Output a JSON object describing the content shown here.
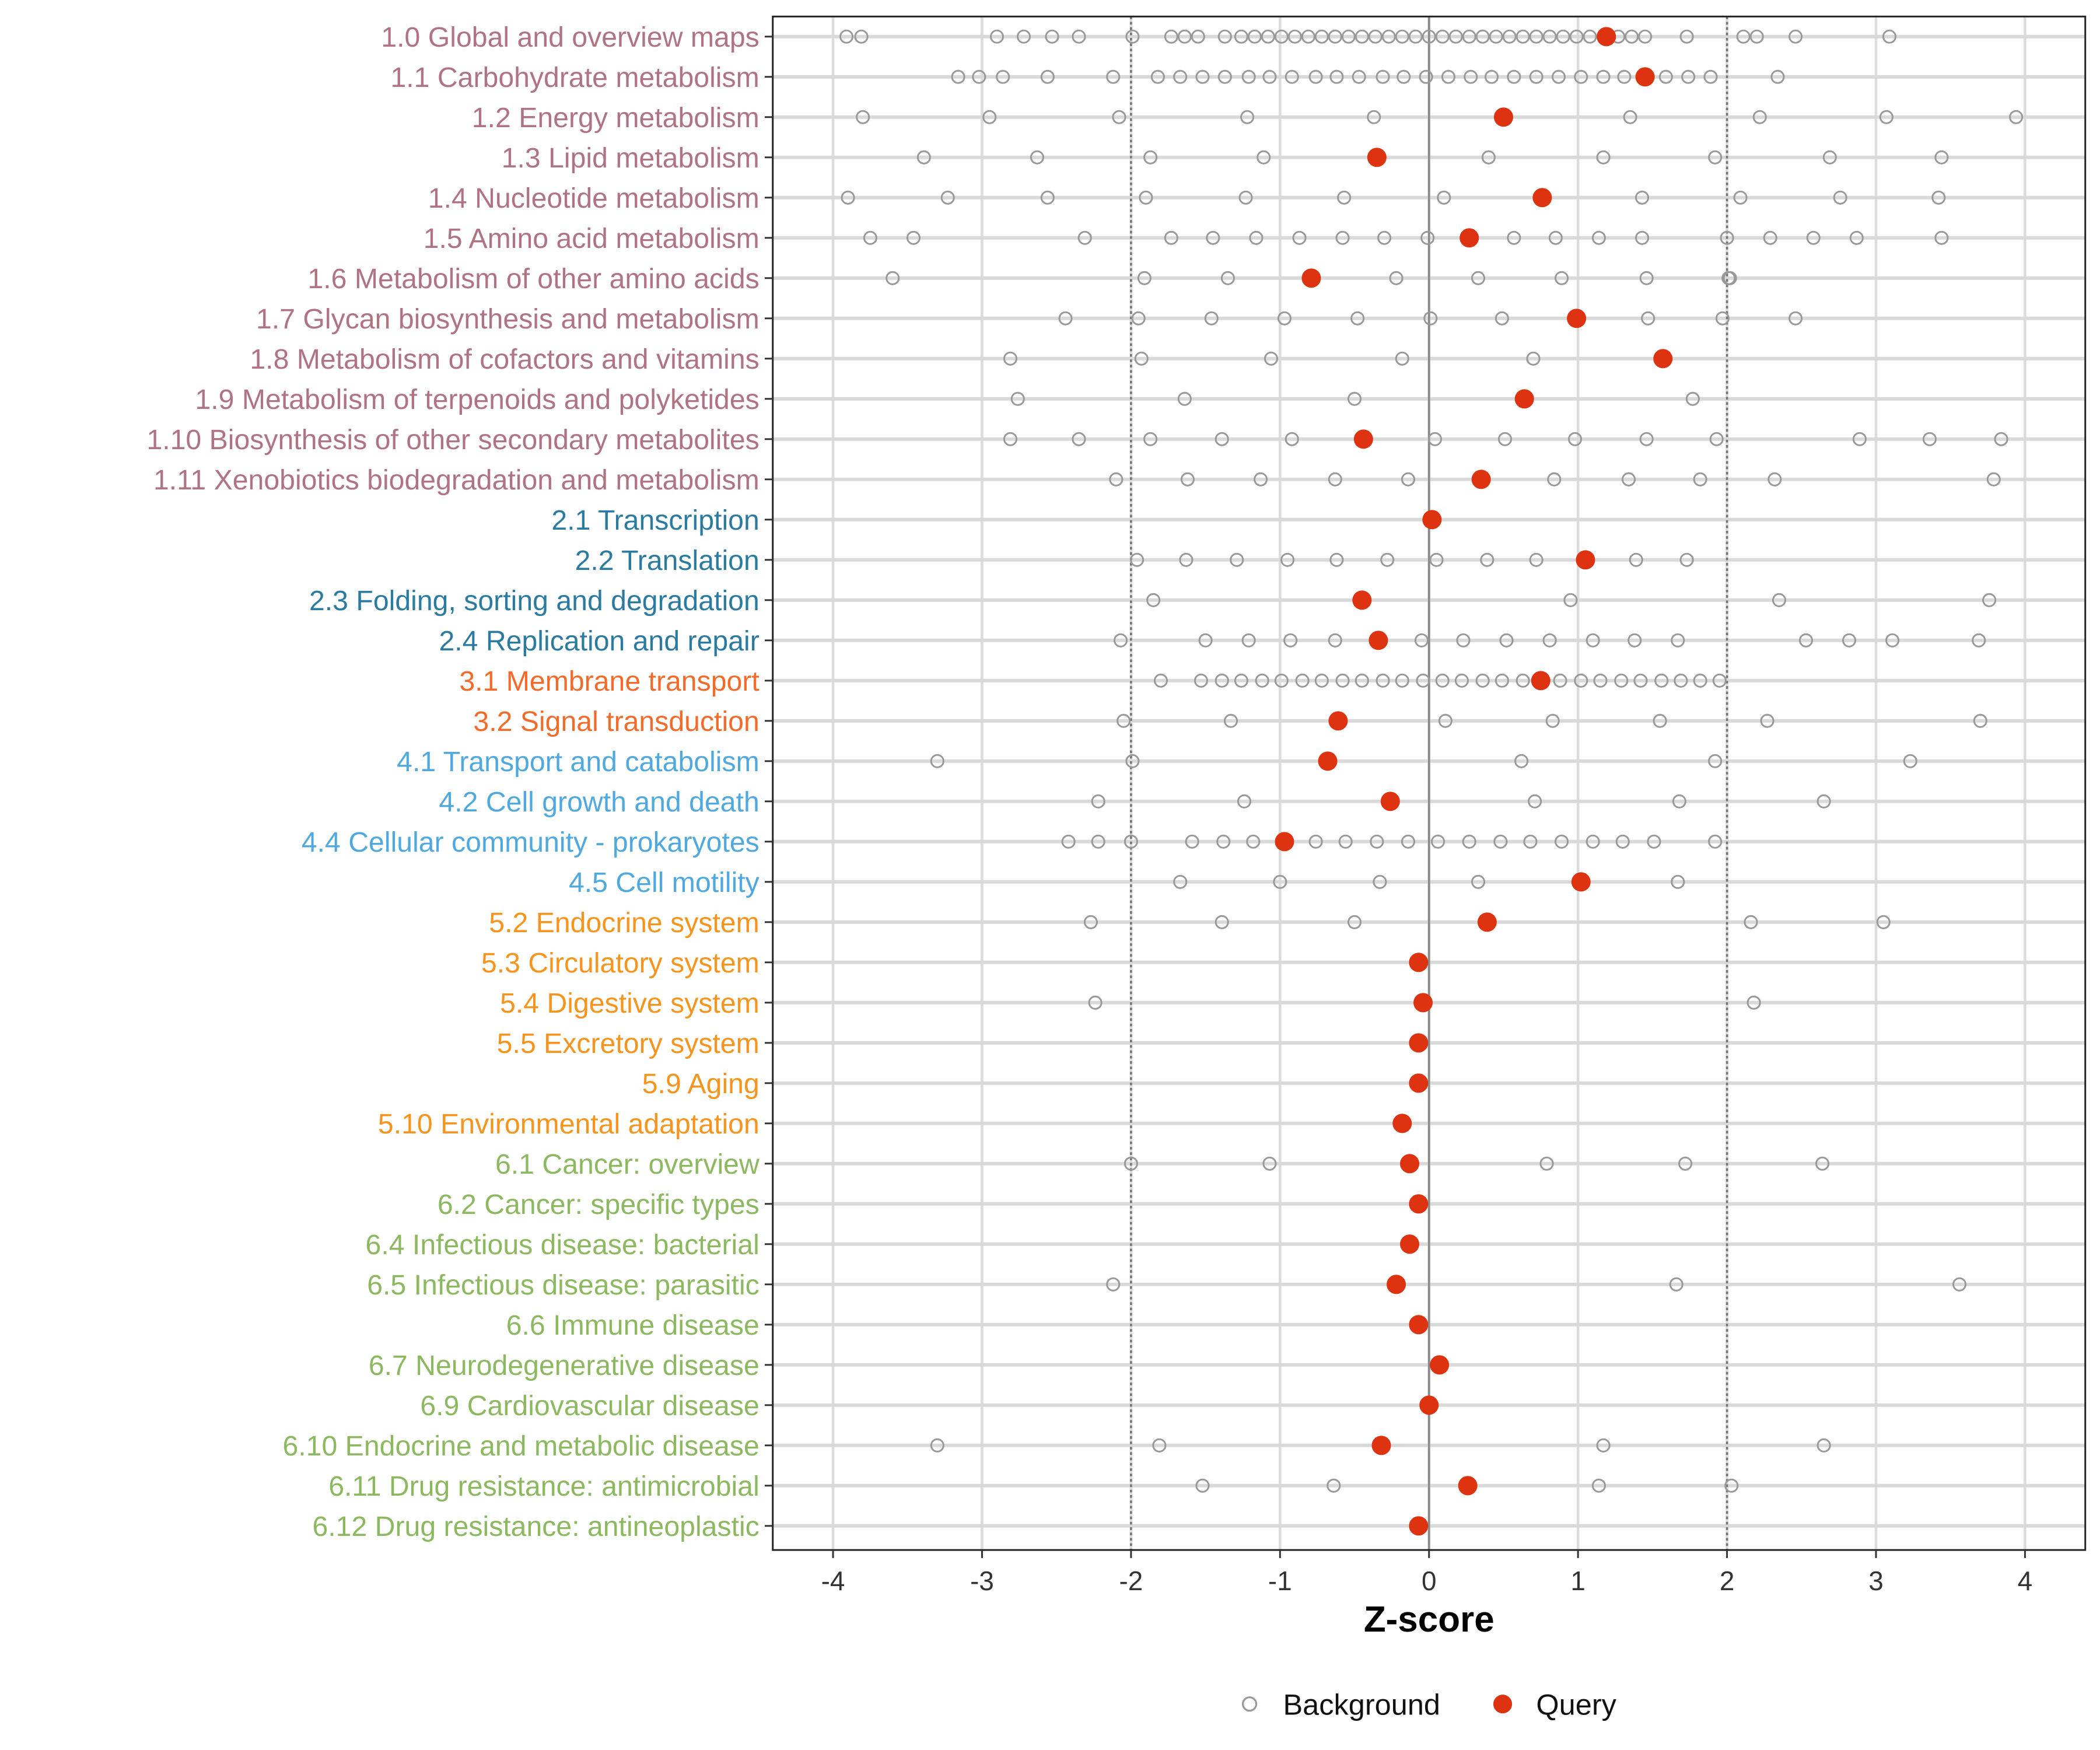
{
  "chart_data": {
    "type": "scatter",
    "title": "",
    "xlabel": "Z-score",
    "ylabel": "",
    "xlim": [
      -4.25,
      4.4
    ],
    "xticks": [
      -4,
      -3,
      -2,
      -1,
      0,
      1,
      2,
      3,
      4
    ],
    "xtick_labels": [
      "-4",
      "-3",
      "-2",
      "-1",
      "0",
      "1",
      "2",
      "3",
      "4"
    ],
    "reference_lines": {
      "dashed": [
        -2,
        2
      ],
      "solid": [
        0
      ]
    },
    "grid": true,
    "legend": {
      "placement": "bottom",
      "entries": [
        "Background",
        "Query"
      ]
    },
    "colors": {
      "query": "#DD3311",
      "background": "#999999",
      "group_1": "#B07383",
      "group_2": "#2B7BA0",
      "group_3": "#F26B2A",
      "group_4": "#4FA9DE",
      "group_5": "#F7941D",
      "group_6": "#8CB860"
    },
    "categories": [
      {
        "label": "1.0 Global and overview maps",
        "group": 1,
        "query": 1.19,
        "background": [
          -3.91,
          -3.81,
          -2.9,
          -2.72,
          -2.53,
          -2.35,
          -1.99,
          -1.73,
          -1.64,
          -1.55,
          -1.37,
          -1.26,
          -1.17,
          -1.08,
          -0.99,
          -0.9,
          -0.81,
          -0.72,
          -0.63,
          -0.54,
          -0.45,
          -0.36,
          -0.27,
          -0.18,
          -0.09,
          0.0,
          0.09,
          0.18,
          0.27,
          0.36,
          0.45,
          0.54,
          0.63,
          0.72,
          0.81,
          0.9,
          0.99,
          1.08,
          1.27,
          1.36,
          1.45,
          1.73,
          2.11,
          2.2,
          2.46,
          3.09
        ]
      },
      {
        "label": "1.1 Carbohydrate metabolism",
        "group": 1,
        "query": 1.45,
        "background": [
          -3.16,
          -3.02,
          -2.86,
          -2.56,
          -2.12,
          -1.82,
          -1.67,
          -1.52,
          -1.37,
          -1.21,
          -1.07,
          -0.92,
          -0.76,
          -0.62,
          -0.47,
          -0.31,
          -0.17,
          -0.02,
          0.13,
          0.28,
          0.42,
          0.57,
          0.72,
          0.87,
          1.02,
          1.17,
          1.31,
          1.59,
          1.74,
          1.89,
          2.34
        ]
      },
      {
        "label": "1.2 Energy metabolism",
        "group": 1,
        "query": 0.5,
        "background": [
          -3.8,
          -2.95,
          -2.08,
          -1.22,
          -0.37,
          1.35,
          2.22,
          3.07,
          3.94
        ]
      },
      {
        "label": "1.3 Lipid metabolism",
        "group": 1,
        "query": -0.35,
        "background": [
          -3.39,
          -2.63,
          -1.87,
          -1.11,
          0.4,
          1.17,
          1.92,
          2.69,
          3.44
        ]
      },
      {
        "label": "1.4 Nucleotide metabolism",
        "group": 1,
        "query": 0.76,
        "background": [
          -3.9,
          -3.23,
          -2.56,
          -1.9,
          -1.23,
          -0.57,
          0.1,
          1.43,
          2.09,
          2.76,
          3.42
        ]
      },
      {
        "label": "1.5 Amino acid metabolism",
        "group": 1,
        "query": 0.27,
        "background": [
          -3.75,
          -3.46,
          -2.31,
          -1.73,
          -1.45,
          -1.16,
          -0.87,
          -0.58,
          -0.3,
          -0.01,
          0.57,
          0.85,
          1.14,
          1.43,
          2.0,
          2.29,
          2.58,
          2.87,
          3.44
        ]
      },
      {
        "label": "1.6 Metabolism of other amino acids",
        "group": 1,
        "query": -0.79,
        "background": [
          -3.6,
          -1.91,
          -1.35,
          -0.22,
          0.33,
          0.89,
          1.46,
          2.01,
          2.02
        ]
      },
      {
        "label": "1.7 Glycan biosynthesis and metabolism",
        "group": 1,
        "query": 0.99,
        "background": [
          -2.44,
          -1.95,
          -1.46,
          -0.97,
          -0.48,
          0.01,
          0.49,
          1.47,
          1.97,
          2.46
        ]
      },
      {
        "label": "1.8 Metabolism of cofactors and vitamins",
        "group": 1,
        "query": 1.57,
        "background": [
          -2.81,
          -1.93,
          -1.06,
          -0.18,
          0.7
        ]
      },
      {
        "label": "1.9 Metabolism of terpenoids and polyketides",
        "group": 1,
        "query": 0.64,
        "background": [
          -2.76,
          -1.64,
          -0.5,
          1.77
        ]
      },
      {
        "label": "1.10 Biosynthesis of other secondary metabolites",
        "group": 1,
        "query": -0.44,
        "background": [
          -2.81,
          -2.35,
          -1.87,
          -1.39,
          -0.92,
          0.04,
          0.51,
          0.98,
          1.46,
          1.93,
          2.89,
          3.36,
          3.84
        ]
      },
      {
        "label": "1.11 Xenobiotics biodegradation and metabolism",
        "group": 1,
        "query": 0.35,
        "background": [
          -2.1,
          -1.62,
          -1.13,
          -0.63,
          -0.14,
          0.84,
          1.34,
          1.82,
          2.32,
          3.79
        ]
      },
      {
        "label": "2.1 Transcription",
        "group": 2,
        "query": 0.02,
        "background": []
      },
      {
        "label": "2.2 Translation",
        "group": 2,
        "query": 1.05,
        "background": [
          -1.96,
          -1.63,
          -1.29,
          -0.95,
          -0.62,
          -0.28,
          0.05,
          0.39,
          0.72,
          1.39,
          1.73
        ]
      },
      {
        "label": "2.3 Folding, sorting and degradation",
        "group": 2,
        "query": -0.45,
        "background": [
          -1.85,
          0.95,
          2.35,
          3.76
        ]
      },
      {
        "label": "2.4 Replication and repair",
        "group": 2,
        "query": -0.34,
        "background": [
          -2.07,
          -1.5,
          -1.21,
          -0.93,
          -0.63,
          -0.05,
          0.23,
          0.52,
          0.81,
          1.1,
          1.38,
          1.67,
          2.53,
          2.82,
          3.11,
          3.69
        ]
      },
      {
        "label": "3.1 Membrane transport",
        "group": 3,
        "query": 0.75,
        "background": [
          -1.8,
          -1.53,
          -1.39,
          -1.26,
          -1.12,
          -0.99,
          -0.85,
          -0.72,
          -0.58,
          -0.45,
          -0.31,
          -0.18,
          -0.04,
          0.09,
          0.22,
          0.36,
          0.49,
          0.63,
          0.88,
          1.02,
          1.15,
          1.29,
          1.42,
          1.56,
          1.69,
          1.82,
          1.95
        ]
      },
      {
        "label": "3.2 Signal transduction",
        "group": 3,
        "query": -0.61,
        "background": [
          -2.05,
          -1.33,
          0.11,
          0.83,
          1.55,
          2.27,
          3.7
        ]
      },
      {
        "label": "4.1 Transport and catabolism",
        "group": 4,
        "query": -0.68,
        "background": [
          -3.3,
          -1.99,
          0.62,
          1.92,
          3.23
        ]
      },
      {
        "label": "4.2 Cell growth and death",
        "group": 4,
        "query": -0.26,
        "background": [
          -2.22,
          -1.24,
          0.71,
          1.68,
          2.65
        ]
      },
      {
        "label": "4.4 Cellular community - prokaryotes",
        "group": 4,
        "query": -0.97,
        "background": [
          -2.42,
          -2.22,
          -2.0,
          -1.59,
          -1.38,
          -1.18,
          -0.76,
          -0.56,
          -0.35,
          -0.14,
          0.06,
          0.27,
          0.48,
          0.68,
          0.89,
          1.1,
          1.3,
          1.51,
          1.92
        ]
      },
      {
        "label": "4.5 Cell motility",
        "group": 4,
        "query": 1.02,
        "background": [
          -1.67,
          -1.0,
          -0.33,
          0.33,
          1.67
        ]
      },
      {
        "label": "5.2 Endocrine system",
        "group": 5,
        "query": 0.39,
        "background": [
          -2.27,
          -1.39,
          -0.5,
          2.16,
          3.05
        ]
      },
      {
        "label": "5.3 Circulatory system",
        "group": 5,
        "query": -0.07,
        "background": []
      },
      {
        "label": "5.4 Digestive system",
        "group": 5,
        "query": -0.04,
        "background": [
          -2.24,
          2.18
        ]
      },
      {
        "label": "5.5 Excretory system",
        "group": 5,
        "query": -0.07,
        "background": []
      },
      {
        "label": "5.9 Aging",
        "group": 5,
        "query": -0.07,
        "background": []
      },
      {
        "label": "5.10 Environmental adaptation",
        "group": 5,
        "query": -0.18,
        "background": []
      },
      {
        "label": "6.1 Cancer: overview",
        "group": 6,
        "query": -0.13,
        "background": [
          -2.0,
          -1.07,
          0.79,
          1.72,
          2.64
        ]
      },
      {
        "label": "6.2 Cancer: specific types",
        "group": 6,
        "query": -0.07,
        "background": []
      },
      {
        "label": "6.4 Infectious disease: bacterial",
        "group": 6,
        "query": -0.13,
        "background": []
      },
      {
        "label": "6.5 Infectious disease: parasitic",
        "group": 6,
        "query": -0.22,
        "background": [
          -2.12,
          1.66,
          3.56
        ]
      },
      {
        "label": "6.6 Immune disease",
        "group": 6,
        "query": -0.07,
        "background": []
      },
      {
        "label": "6.7 Neurodegenerative disease",
        "group": 6,
        "query": 0.07,
        "background": []
      },
      {
        "label": "6.9 Cardiovascular disease",
        "group": 6,
        "query": 0.0,
        "background": []
      },
      {
        "label": "6.10 Endocrine and metabolic disease",
        "group": 6,
        "query": -0.32,
        "background": [
          -3.3,
          -1.81,
          1.17,
          2.65
        ]
      },
      {
        "label": "6.11 Drug resistance: antimicrobial",
        "group": 6,
        "query": 0.26,
        "background": [
          -1.52,
          -0.64,
          1.14,
          2.03
        ]
      },
      {
        "label": "6.12 Drug resistance: antineoplastic",
        "group": 6,
        "query": -0.07,
        "background": []
      }
    ]
  }
}
